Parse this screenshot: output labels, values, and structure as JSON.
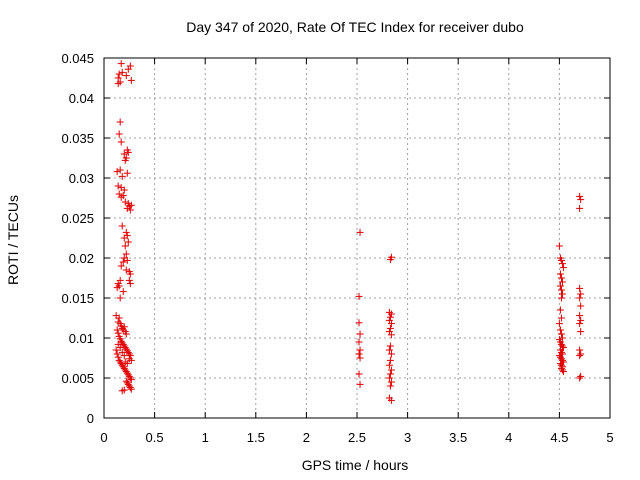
{
  "chart_data": {
    "type": "scatter",
    "title": "Day 347 of 2020, Rate Of TEC Index for receiver dubo",
    "xlabel": "GPS time / hours",
    "ylabel": "ROTI / TECUs",
    "xlim": [
      0,
      5
    ],
    "ylim": [
      0,
      0.045
    ],
    "xticks": [
      "0",
      "0.5",
      "1",
      "1.5",
      "2",
      "2.5",
      "3",
      "3.5",
      "4",
      "4.5",
      "5"
    ],
    "yticks": [
      "0",
      "0.005",
      "0.01",
      "0.015",
      "0.02",
      "0.025",
      "0.03",
      "0.035",
      "0.04",
      "0.045"
    ],
    "grid": true,
    "marker": "+",
    "marker_color": "#e00000",
    "points": [
      [
        0.14,
        0.0418
      ],
      [
        0.14,
        0.0425
      ],
      [
        0.15,
        0.043
      ],
      [
        0.16,
        0.042
      ],
      [
        0.17,
        0.0443
      ],
      [
        0.18,
        0.0432
      ],
      [
        0.22,
        0.0428
      ],
      [
        0.24,
        0.0436
      ],
      [
        0.26,
        0.044
      ],
      [
        0.27,
        0.0422
      ],
      [
        0.16,
        0.037
      ],
      [
        0.15,
        0.0355
      ],
      [
        0.17,
        0.0345
      ],
      [
        0.2,
        0.033
      ],
      [
        0.22,
        0.0325
      ],
      [
        0.23,
        0.0335
      ],
      [
        0.24,
        0.0332
      ],
      [
        0.21,
        0.0322
      ],
      [
        0.13,
        0.0308
      ],
      [
        0.16,
        0.031
      ],
      [
        0.18,
        0.0302
      ],
      [
        0.23,
        0.0306
      ],
      [
        0.14,
        0.029
      ],
      [
        0.17,
        0.0288
      ],
      [
        0.2,
        0.0285
      ],
      [
        0.15,
        0.028
      ],
      [
        0.17,
        0.0276
      ],
      [
        0.19,
        0.0278
      ],
      [
        0.21,
        0.027
      ],
      [
        0.24,
        0.0268
      ],
      [
        0.25,
        0.0265
      ],
      [
        0.26,
        0.026
      ],
      [
        0.23,
        0.0262
      ],
      [
        0.27,
        0.0266
      ],
      [
        0.18,
        0.024
      ],
      [
        0.22,
        0.0232
      ],
      [
        0.2,
        0.0225
      ],
      [
        0.23,
        0.0228
      ],
      [
        0.24,
        0.022
      ],
      [
        0.21,
        0.0215
      ],
      [
        0.22,
        0.0205
      ],
      [
        0.2,
        0.02
      ],
      [
        0.23,
        0.0197
      ],
      [
        0.19,
        0.0195
      ],
      [
        0.17,
        0.019
      ],
      [
        0.22,
        0.0185
      ],
      [
        0.25,
        0.0183
      ],
      [
        0.26,
        0.018
      ],
      [
        0.16,
        0.0172
      ],
      [
        0.14,
        0.0168
      ],
      [
        0.15,
        0.0165
      ],
      [
        0.13,
        0.0163
      ],
      [
        0.25,
        0.0172
      ],
      [
        0.26,
        0.0168
      ],
      [
        0.16,
        0.015
      ],
      [
        0.19,
        0.0158
      ],
      [
        0.12,
        0.0128
      ],
      [
        0.14,
        0.012
      ],
      [
        0.15,
        0.0125
      ],
      [
        0.16,
        0.0118
      ],
      [
        0.17,
        0.0115
      ],
      [
        0.18,
        0.0112
      ],
      [
        0.19,
        0.011
      ],
      [
        0.2,
        0.0114
      ],
      [
        0.21,
        0.0108
      ],
      [
        0.22,
        0.0105
      ],
      [
        0.13,
        0.011
      ],
      [
        0.14,
        0.0106
      ],
      [
        0.15,
        0.0102
      ],
      [
        0.16,
        0.0099
      ],
      [
        0.17,
        0.0096
      ],
      [
        0.18,
        0.0094
      ],
      [
        0.19,
        0.0092
      ],
      [
        0.2,
        0.009
      ],
      [
        0.21,
        0.0088
      ],
      [
        0.22,
        0.0086
      ],
      [
        0.23,
        0.0084
      ],
      [
        0.24,
        0.0082
      ],
      [
        0.25,
        0.008
      ],
      [
        0.26,
        0.0078
      ],
      [
        0.12,
        0.0085
      ],
      [
        0.13,
        0.008
      ],
      [
        0.14,
        0.0076
      ],
      [
        0.15,
        0.0072
      ],
      [
        0.16,
        0.007
      ],
      [
        0.17,
        0.0068
      ],
      [
        0.18,
        0.0066
      ],
      [
        0.19,
        0.0064
      ],
      [
        0.2,
        0.0062
      ],
      [
        0.21,
        0.006
      ],
      [
        0.22,
        0.0058
      ],
      [
        0.23,
        0.0056
      ],
      [
        0.24,
        0.0054
      ],
      [
        0.25,
        0.0052
      ],
      [
        0.26,
        0.005
      ],
      [
        0.27,
        0.0048
      ],
      [
        0.22,
        0.0046
      ],
      [
        0.23,
        0.0044
      ],
      [
        0.24,
        0.0042
      ],
      [
        0.25,
        0.004
      ],
      [
        0.26,
        0.0038
      ],
      [
        0.27,
        0.0036
      ],
      [
        0.2,
        0.0035
      ],
      [
        0.18,
        0.0034
      ],
      [
        0.21,
        0.007
      ],
      [
        0.23,
        0.0068
      ],
      [
        0.25,
        0.0074
      ],
      [
        0.27,
        0.0072
      ],
      [
        0.14,
        0.0092
      ],
      [
        0.16,
        0.0088
      ],
      [
        0.18,
        0.0082
      ],
      [
        0.2,
        0.0078
      ],
      [
        2.53,
        0.0232
      ],
      [
        2.52,
        0.0152
      ],
      [
        2.52,
        0.0119
      ],
      [
        2.53,
        0.0105
      ],
      [
        2.52,
        0.0095
      ],
      [
        2.53,
        0.0085
      ],
      [
        2.52,
        0.008
      ],
      [
        2.53,
        0.0075
      ],
      [
        2.52,
        0.0055
      ],
      [
        2.53,
        0.0042
      ],
      [
        2.84,
        0.0201
      ],
      [
        2.83,
        0.0198
      ],
      [
        2.82,
        0.0132
      ],
      [
        2.84,
        0.013
      ],
      [
        2.83,
        0.0126
      ],
      [
        2.82,
        0.0122
      ],
      [
        2.84,
        0.0118
      ],
      [
        2.83,
        0.0112
      ],
      [
        2.82,
        0.0108
      ],
      [
        2.84,
        0.0104
      ],
      [
        2.83,
        0.009
      ],
      [
        2.82,
        0.0085
      ],
      [
        2.84,
        0.008
      ],
      [
        2.83,
        0.0072
      ],
      [
        2.82,
        0.0066
      ],
      [
        2.84,
        0.006
      ],
      [
        2.83,
        0.0055
      ],
      [
        2.82,
        0.005
      ],
      [
        2.84,
        0.0045
      ],
      [
        2.83,
        0.004
      ],
      [
        2.82,
        0.0025
      ],
      [
        2.84,
        0.0022
      ],
      [
        4.5,
        0.0215
      ],
      [
        4.51,
        0.02
      ],
      [
        4.52,
        0.0197
      ],
      [
        4.53,
        0.0193
      ],
      [
        4.54,
        0.0188
      ],
      [
        4.51,
        0.018
      ],
      [
        4.52,
        0.0175
      ],
      [
        4.53,
        0.017
      ],
      [
        4.51,
        0.0165
      ],
      [
        4.52,
        0.016
      ],
      [
        4.53,
        0.0155
      ],
      [
        4.52,
        0.015
      ],
      [
        4.51,
        0.0135
      ],
      [
        4.52,
        0.0125
      ],
      [
        4.5,
        0.0118
      ],
      [
        4.51,
        0.011
      ],
      [
        4.52,
        0.0105
      ],
      [
        4.53,
        0.01
      ],
      [
        4.5,
        0.0098
      ],
      [
        4.51,
        0.0095
      ],
      [
        4.52,
        0.0092
      ],
      [
        4.53,
        0.009
      ],
      [
        4.54,
        0.0088
      ],
      [
        4.51,
        0.0085
      ],
      [
        4.52,
        0.0082
      ],
      [
        4.53,
        0.008
      ],
      [
        4.5,
        0.0078
      ],
      [
        4.51,
        0.0076
      ],
      [
        4.52,
        0.0074
      ],
      [
        4.53,
        0.0072
      ],
      [
        4.54,
        0.007
      ],
      [
        4.51,
        0.0068
      ],
      [
        4.52,
        0.0066
      ],
      [
        4.53,
        0.0064
      ],
      [
        4.52,
        0.0062
      ],
      [
        4.53,
        0.006
      ],
      [
        4.54,
        0.0058
      ],
      [
        4.7,
        0.0277
      ],
      [
        4.71,
        0.0273
      ],
      [
        4.7,
        0.0262
      ],
      [
        4.7,
        0.0162
      ],
      [
        4.71,
        0.0155
      ],
      [
        4.7,
        0.015
      ],
      [
        4.71,
        0.014
      ],
      [
        4.7,
        0.0128
      ],
      [
        4.71,
        0.0122
      ],
      [
        4.7,
        0.0118
      ],
      [
        4.71,
        0.0108
      ],
      [
        4.7,
        0.0085
      ],
      [
        4.71,
        0.008
      ],
      [
        4.7,
        0.0078
      ],
      [
        4.71,
        0.0052
      ],
      [
        4.7,
        0.005
      ]
    ]
  }
}
